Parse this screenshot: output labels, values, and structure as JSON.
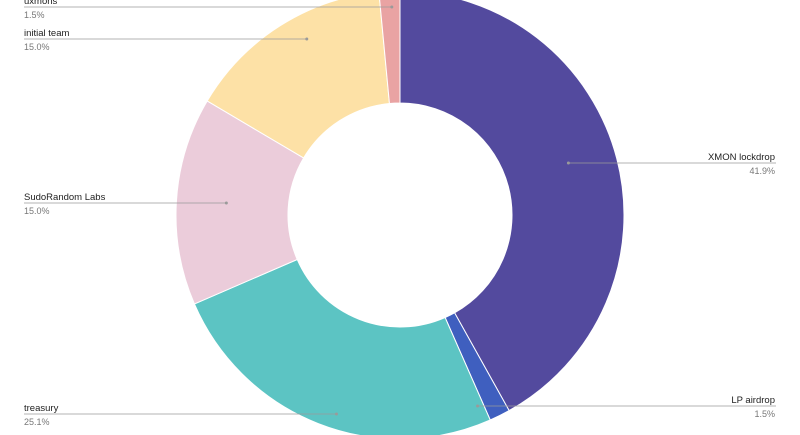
{
  "chart_data": {
    "type": "pie",
    "donut": true,
    "legend": "labels-with-leader-lines",
    "slices": [
      {
        "label": "XMON lockdrop",
        "value": 41.9,
        "display": "41.9%",
        "color": "#534a9e"
      },
      {
        "label": "LP airdrop",
        "value": 1.5,
        "display": "1.5%",
        "color": "#3f5fbf"
      },
      {
        "label": "treasury",
        "value": 25.1,
        "display": "25.1%",
        "color": "#5cc4c3"
      },
      {
        "label": "SudoRandom Labs",
        "value": 15.0,
        "display": "15.0%",
        "color": "#ebccda"
      },
      {
        "label": "initial team",
        "value": 15.0,
        "display": "15.0%",
        "color": "#fde1a6"
      },
      {
        "label": "uxmons",
        "value": 1.5,
        "display": "1.5%",
        "color": "#e9a3a3"
      }
    ]
  }
}
